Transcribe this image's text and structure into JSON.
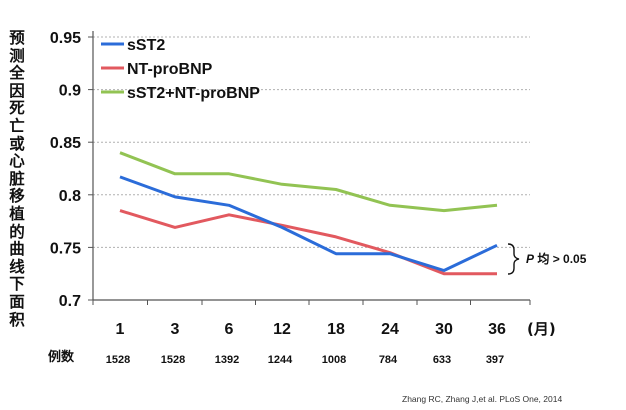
{
  "chart_data": {
    "type": "line",
    "ylabel": "预测全因死亡或心脏移植的曲线下面积",
    "categories": [
      "1",
      "3",
      "6",
      "12",
      "18",
      "24",
      "30",
      "36"
    ],
    "x_unit": "(月)",
    "ylim": [
      0.7,
      0.95
    ],
    "yticks": [
      "0.95",
      "0.9",
      "0.85",
      "0.8",
      "0.75",
      "0.7"
    ],
    "ytick_values": [
      0.95,
      0.9,
      0.85,
      0.8,
      0.75,
      0.7
    ],
    "grid": true,
    "legend_position": "top-left",
    "series": [
      {
        "name": "sST2",
        "color": "#2b6cd9",
        "values": [
          0.817,
          0.798,
          0.79,
          0.769,
          0.744,
          0.744,
          0.728,
          0.752
        ]
      },
      {
        "name": "NT-proBNP",
        "color": "#e2595f",
        "values": [
          0.785,
          0.769,
          0.781,
          0.771,
          0.76,
          0.745,
          0.725,
          0.725
        ]
      },
      {
        "name": "sST2+NT-proBNP",
        "color": "#92c353",
        "values": [
          0.84,
          0.82,
          0.82,
          0.81,
          0.805,
          0.79,
          0.785,
          0.79
        ]
      }
    ],
    "counts_label": "例数",
    "counts": [
      "1528",
      "1528",
      "1392",
      "1244",
      "1008",
      "784",
      "633",
      "397"
    ],
    "annotation": {
      "p": "P",
      "text": "均 > 0.05"
    }
  },
  "citation": "Zhang RC, Zhang J,et al. PLoS One, 2014",
  "colors": {
    "axis": "#555555",
    "grid": "#b0b0b0"
  }
}
